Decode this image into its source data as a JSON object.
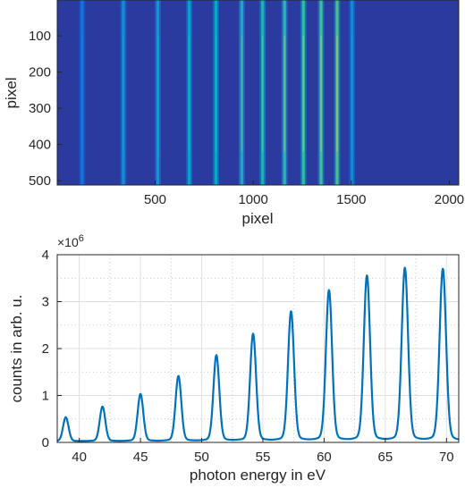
{
  "chart_data": [
    {
      "type": "heatmap",
      "title": "",
      "xlabel": "pixel",
      "ylabel": "pixel",
      "xlim": [
        1,
        2048
      ],
      "ylim": [
        512,
        1
      ],
      "x_ticks": [
        500,
        1000,
        1500,
        2000
      ],
      "y_ticks": [
        100,
        200,
        300,
        400,
        500
      ],
      "x_tick_labels": [
        "500",
        "1000",
        "1500",
        "2000"
      ],
      "y_tick_labels": [
        "100",
        "200",
        "300",
        "400",
        "500"
      ],
      "colormap": "parula",
      "background_color": "#2a3a9e",
      "line_positions": [
        128,
        338,
        514,
        674,
        810,
        942,
        1048,
        1160,
        1256,
        1346,
        1428,
        1504
      ],
      "line_intensities": [
        0.33,
        0.48,
        0.55,
        0.6,
        0.65,
        0.7,
        0.74,
        0.78,
        0.82,
        0.84,
        0.86,
        0.45
      ]
    },
    {
      "type": "line",
      "title": "",
      "xlabel": "photon energy in eV",
      "ylabel": "counts in arb. u.",
      "y_multiplier_label": "×10",
      "y_multiplier_exponent": "6",
      "xlim": [
        38.2,
        71
      ],
      "ylim": [
        0,
        4
      ],
      "x_ticks": [
        40,
        45,
        50,
        55,
        60,
        65,
        70
      ],
      "y_ticks": [
        0,
        1,
        2,
        3,
        4
      ],
      "x_tick_labels": [
        "40",
        "45",
        "50",
        "55",
        "60",
        "65",
        "70"
      ],
      "y_tick_labels": [
        "0",
        "1",
        "2",
        "3",
        "4"
      ],
      "grid": true,
      "minor_grid": true,
      "line_color": "#0072bd",
      "peaks": {
        "x": [
          38.9,
          41.9,
          45.0,
          48.1,
          51.2,
          54.2,
          57.3,
          60.4,
          63.5,
          66.6,
          69.7
        ],
        "y": [
          0.5,
          0.72,
          0.98,
          1.35,
          1.78,
          2.22,
          2.68,
          3.12,
          3.42,
          3.58,
          3.56
        ]
      },
      "baseline": 0.02
    }
  ]
}
